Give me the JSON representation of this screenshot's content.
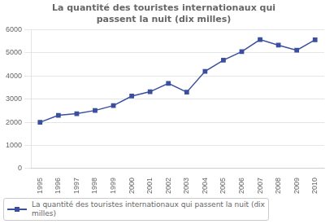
{
  "chart_data": {
    "type": "line",
    "title": "La quantité des touristes internationaux qui\npassent la nuit (dix milles)",
    "x": [
      1995,
      1996,
      1997,
      1998,
      1999,
      2000,
      2001,
      2002,
      2003,
      2004,
      2005,
      2006,
      2007,
      2008,
      2009,
      2010
    ],
    "series": [
      {
        "name": "La quantité des touristes internationaux qui passent la nuit (dix\nmilles)",
        "color": "#3a4fa0",
        "marker": "square",
        "values": [
          2000,
          2300,
          2370,
          2510,
          2720,
          3130,
          3320,
          3680,
          3300,
          4200,
          4680,
          5050,
          5570,
          5330,
          5110,
          5560
        ]
      }
    ],
    "xlim": [
      1994.5,
      2010.5
    ],
    "xticks": [
      1995,
      1996,
      1997,
      1998,
      1999,
      2000,
      2001,
      2002,
      2003,
      2004,
      2005,
      2006,
      2007,
      2008,
      2009,
      2010
    ],
    "ylim": [
      0,
      6000
    ],
    "yticks": [
      0,
      1000,
      2000,
      3000,
      4000,
      5000,
      6000
    ],
    "grid": "y",
    "legend": "bottom"
  }
}
